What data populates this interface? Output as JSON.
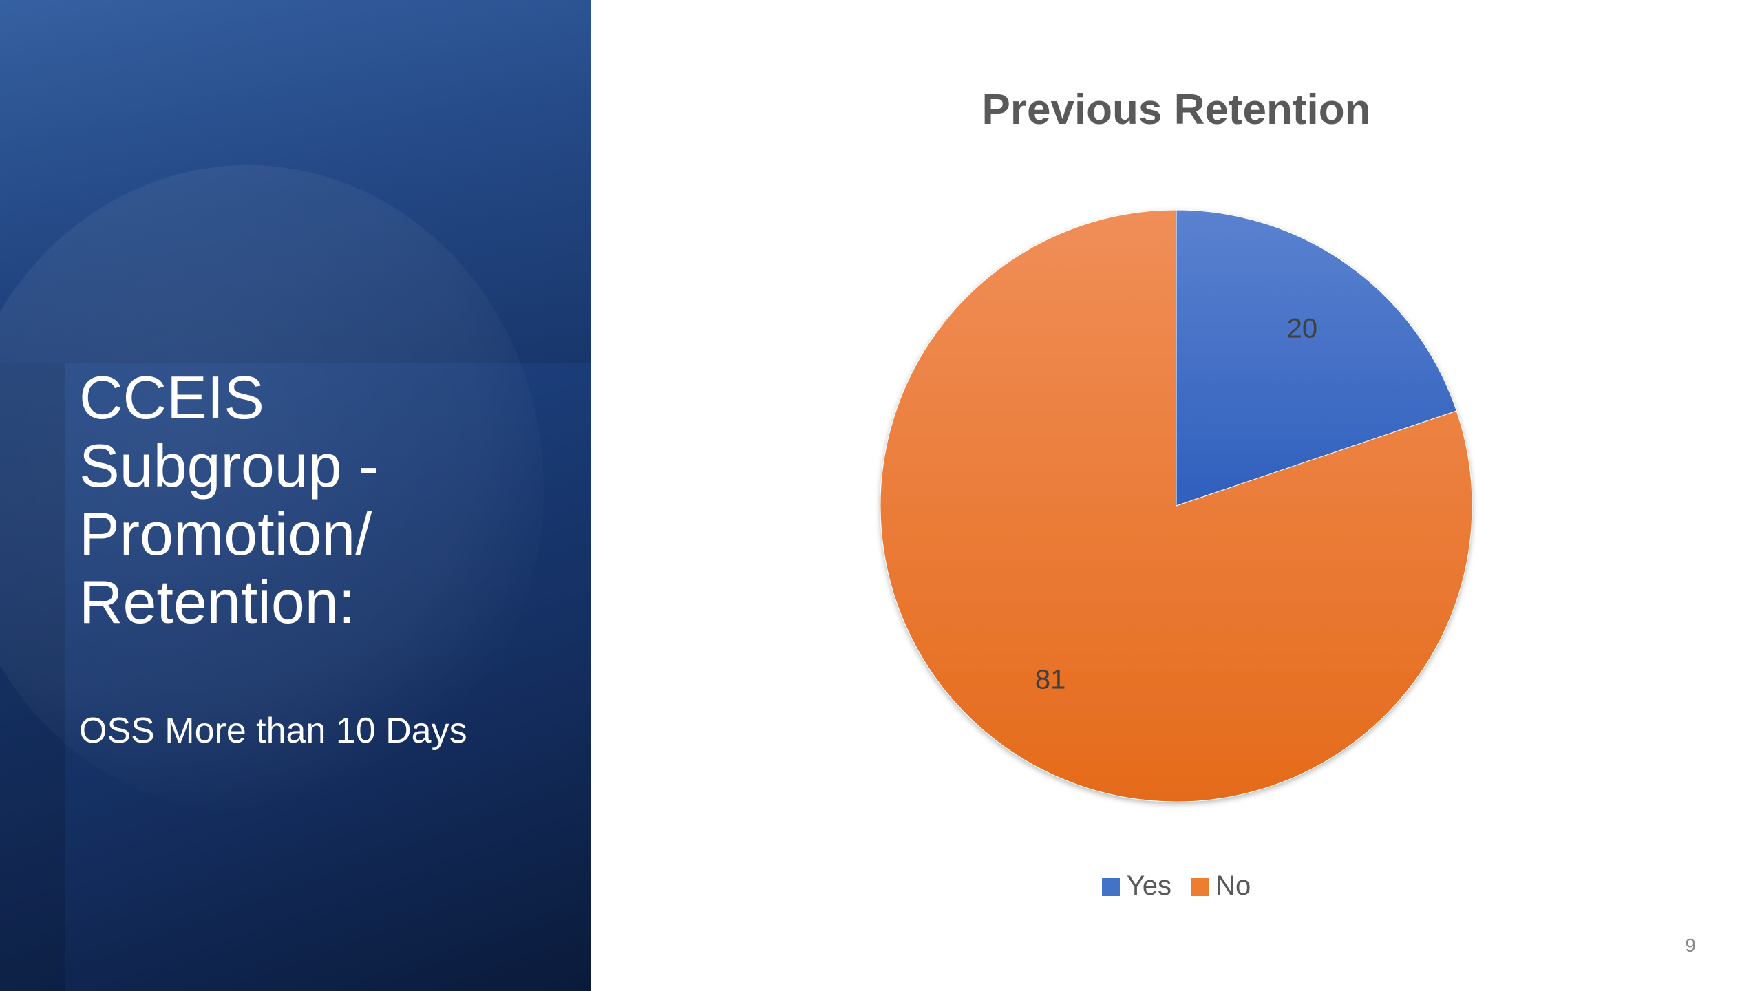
{
  "slide": {
    "title_lines": [
      "CCEIS",
      "Subgroup -",
      "Promotion/",
      "Retention:"
    ],
    "subtitle": "OSS More than 10 Days",
    "page_number": "9"
  },
  "colors": {
    "panel_dark": "#0a1a3a",
    "panel_mid": "#1f4383",
    "yes_slice": "#4472c4",
    "no_slice": "#ed7d31"
  },
  "chart_data": {
    "type": "pie",
    "title": "Previous Retention",
    "categories": [
      "Yes",
      "No"
    ],
    "values": [
      20,
      81
    ],
    "data_labels": [
      "20",
      "81"
    ],
    "legend_placement": "bottom",
    "colors": [
      "#4472c4",
      "#ed7d31"
    ]
  }
}
